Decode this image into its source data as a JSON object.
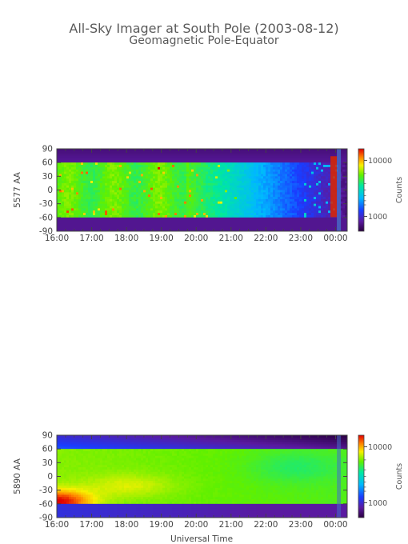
{
  "title": "All-Sky Imager at South Pole (2003-08-12)",
  "subtitle": "Geomagnetic Pole-Equator",
  "xlabel": "Universal Time",
  "chart_data": [
    {
      "type": "heatmap",
      "ylabel": "5577 AA",
      "colorbar_label": "Counts",
      "colorbar_ticks": [
        "10000",
        "1000"
      ],
      "colorbar_scale": "log",
      "x_ticks": [
        "16:00",
        "17:00",
        "18:00",
        "19:00",
        "20:00",
        "21:00",
        "22:00",
        "23:00",
        "00:00"
      ],
      "y_ticks": [
        "90",
        "60",
        "30",
        "0",
        "-30",
        "-60",
        "-90"
      ],
      "xlim": [
        "16:00",
        "00:20"
      ],
      "ylim": [
        -90,
        90
      ]
    },
    {
      "type": "heatmap",
      "ylabel": "5890 AA",
      "colorbar_label": "Counts",
      "colorbar_ticks": [
        "10000",
        "1000"
      ],
      "colorbar_scale": "log",
      "x_ticks": [
        "16:00",
        "17:00",
        "18:00",
        "19:00",
        "20:00",
        "21:00",
        "22:00",
        "23:00",
        "00:00"
      ],
      "y_ticks": [
        "90",
        "60",
        "30",
        "0",
        "-30",
        "-60",
        "-90"
      ],
      "xlim": [
        "16:00",
        "00:20"
      ],
      "ylim": [
        -90,
        90
      ]
    }
  ]
}
